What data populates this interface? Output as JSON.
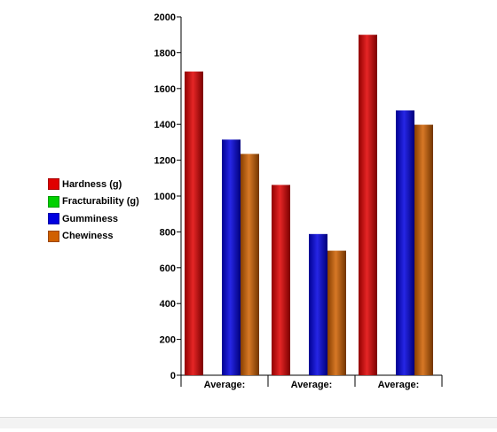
{
  "chart_data": {
    "type": "bar",
    "categories": [
      "Average:",
      "Average:",
      "Average:"
    ],
    "series": [
      {
        "name": "Hardness (g)",
        "color": "#e00000",
        "values": [
          1695,
          1062,
          1900
        ]
      },
      {
        "name": "Fracturability (g)",
        "color": "#00d000",
        "values": [
          0,
          0,
          0
        ]
      },
      {
        "name": "Gumminess",
        "color": "#0000e0",
        "values": [
          1315,
          788,
          1478
        ]
      },
      {
        "name": "Chewiness",
        "color": "#d06000",
        "values": [
          1235,
          695,
          1398
        ]
      }
    ],
    "ylim": [
      0,
      2000
    ],
    "yticks": [
      "0",
      "200",
      "400",
      "600",
      "800",
      "1000",
      "1200",
      "1400",
      "1600",
      "1800",
      "2000"
    ],
    "legend_position": "left",
    "grid": false
  }
}
